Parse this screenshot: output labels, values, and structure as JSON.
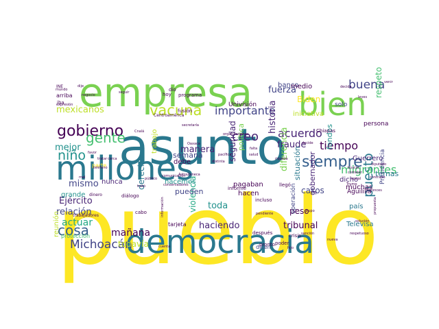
{
  "word_cloud": {
    "palette": [
      "#440154",
      "#482475",
      "#414487",
      "#355f8d",
      "#2a788e",
      "#21918c",
      "#22a884",
      "#44bf70",
      "#7ad151",
      "#bddf26",
      "#fde725"
    ],
    "words": [
      {
        "text": "pueblo",
        "weight": 100,
        "color": "#fde725"
      },
      {
        "text": "asunto",
        "weight": 78,
        "color": "#2a788e"
      },
      {
        "text": "empresa",
        "weight": 62,
        "color": "#7ad151"
      },
      {
        "text": "millones",
        "weight": 56,
        "color": "#2a788e"
      },
      {
        "text": "democracia",
        "weight": 50,
        "color": "#2a788e"
      },
      {
        "text": "bien",
        "weight": 44,
        "color": "#7ad151"
      },
      {
        "text": "siempre",
        "weight": 24,
        "color": "#355f8d"
      },
      {
        "text": "gobierno",
        "weight": 22,
        "color": "#440154"
      },
      {
        "text": "vacuna",
        "weight": 22,
        "color": "#bddf26"
      },
      {
        "text": "gente",
        "weight": 20,
        "color": "#44bf70"
      },
      {
        "text": "cosa",
        "weight": 20,
        "color": "#355f8d"
      },
      {
        "text": "niño",
        "weight": 18,
        "color": "#21918c"
      },
      {
        "text": "Michoacán",
        "weight": 18,
        "color": "#414487"
      },
      {
        "text": "buena",
        "weight": 18,
        "color": "#414487"
      },
      {
        "text": "puesto",
        "weight": 17,
        "color": "#2a788e"
      },
      {
        "text": "creo",
        "weight": 17,
        "color": "#482475"
      },
      {
        "text": "importante",
        "weight": 14,
        "color": "#414487"
      },
      {
        "text": "tiempo",
        "weight": 14,
        "color": "#440154"
      },
      {
        "text": "acuerdo",
        "weight": 14,
        "color": "#482475"
      },
      {
        "text": "migrantes",
        "weight": 14,
        "color": "#44bf70"
      },
      {
        "text": "mexicanos",
        "weight": 13,
        "color": "#bddf26"
      },
      {
        "text": "fuerza",
        "weight": 13,
        "color": "#414487"
      },
      {
        "text": "manera",
        "weight": 13,
        "color": "#482475"
      },
      {
        "text": "mismo",
        "weight": 13,
        "color": "#414487"
      },
      {
        "text": "mañana",
        "weight": 13,
        "color": "#440154"
      },
      {
        "text": "toda",
        "weight": 13,
        "color": "#21918c"
      },
      {
        "text": "actuar",
        "weight": 12,
        "color": "#22a884"
      },
      {
        "text": "Ejército",
        "weight": 12,
        "color": "#482475"
      },
      {
        "text": "relación",
        "weight": 12,
        "color": "#414487"
      },
      {
        "text": "haciendo",
        "weight": 12,
        "color": "#482475"
      },
      {
        "text": "tribunal",
        "weight": 12,
        "color": "#440154"
      },
      {
        "text": "historia",
        "weight": 12,
        "color": "#482475"
      },
      {
        "text": "diferencia",
        "weight": 12,
        "color": "#7ad151"
      },
      {
        "text": "mejor",
        "weight": 11,
        "color": "#21918c"
      },
      {
        "text": "fraude",
        "weight": 11,
        "color": "#482475"
      },
      {
        "text": "Biden",
        "weight": 11,
        "color": "#fde725"
      },
      {
        "text": "respeto",
        "weight": 11,
        "color": "#44bf70"
      },
      {
        "text": "casos",
        "weight": 11,
        "color": "#414487"
      },
      {
        "text": "peso",
        "weight": 11,
        "color": "#440154"
      },
      {
        "text": "seguridad",
        "weight": 11,
        "color": "#482475"
      },
      {
        "text": "derecho",
        "weight": 11,
        "color": "#2a788e"
      },
      {
        "text": "violencia",
        "weight": 11,
        "color": "#22a884"
      },
      {
        "text": "todavía",
        "weight": 11,
        "color": "#bddf26"
      },
      {
        "text": "pueden",
        "weight": 10,
        "color": "#414487"
      },
      {
        "text": "gobernador",
        "weight": 10,
        "color": "#482475"
      },
      {
        "text": "política",
        "weight": 10,
        "color": "#7ad151"
      },
      {
        "text": "situación",
        "weight": 10,
        "color": "#2a788e"
      },
      {
        "text": "fondos",
        "weight": 10,
        "color": "#21918c"
      },
      {
        "text": "Guerrero",
        "weight": 9,
        "color": "#482475"
      },
      {
        "text": "temas",
        "weight": 9,
        "color": "#2a788e"
      },
      {
        "text": "muchas",
        "weight": 9,
        "color": "#440154"
      },
      {
        "text": "dicho",
        "weight": 9,
        "color": "#482475"
      },
      {
        "text": "pagaban",
        "weight": 9,
        "color": "#440154"
      },
      {
        "text": "hacemos",
        "weight": 9,
        "color": "#21918c"
      },
      {
        "text": "hacen",
        "weight": 9,
        "color": "#440154"
      },
      {
        "text": "grande",
        "weight": 9,
        "color": "#21918c"
      },
      {
        "text": "nunca",
        "weight": 9,
        "color": "#482475"
      },
      {
        "text": "debe",
        "weight": 9,
        "color": "#440154"
      },
      {
        "text": "semana",
        "weight": 9,
        "color": "#414487"
      },
      {
        "text": "trabajo",
        "weight": 9,
        "color": "#bddf26"
      },
      {
        "text": "país",
        "weight": 9,
        "color": "#2a788e"
      },
      {
        "text": "Televisa",
        "weight": 9,
        "color": "#2a788e"
      },
      {
        "text": "operación",
        "weight": 8,
        "color": "#414487"
      },
      {
        "text": "Presidencia",
        "weight": 8,
        "color": "#414487"
      },
      {
        "text": "Águililla",
        "weight": 7,
        "color": "#440154"
      },
      {
        "text": "iniciativa",
        "weight": 8,
        "color": "#bddf26"
      },
      {
        "text": "banco",
        "weight": 8,
        "color": "#414487"
      },
      {
        "text": "medio",
        "weight": 8,
        "color": "#440154"
      },
      {
        "text": "solo",
        "weight": 8,
        "color": "#414487"
      },
      {
        "text": "persona",
        "weight": 7,
        "color": "#440154"
      },
      {
        "text": "reunión",
        "weight": 8,
        "color": "#bddf26"
      },
      {
        "text": "protección",
        "weight": 7,
        "color": "#44bf70"
      },
      {
        "text": "parte",
        "weight": 7,
        "color": "#fde725"
      },
      {
        "text": "diálogo",
        "weight": 6,
        "color": "#440154"
      },
      {
        "text": "dicen",
        "weight": 7,
        "color": "#414487"
      },
      {
        "text": "incluso",
        "weight": 6,
        "color": "#440154"
      },
      {
        "text": "informe",
        "weight": 6,
        "color": "#440154"
      },
      {
        "text": "después",
        "weight": 6,
        "color": "#440154"
      },
      {
        "text": "llegó",
        "weight": 6,
        "color": "#440154"
      },
      {
        "text": "crisis",
        "weight": 6,
        "color": "#440154"
      },
      {
        "text": "Chiapas",
        "weight": 6,
        "color": "#440154"
      },
      {
        "text": "tarjeta",
        "weight": 6,
        "color": "#440154"
      },
      {
        "text": "pronto",
        "weight": 5,
        "color": "#440154"
      },
      {
        "text": "poder",
        "weight": 5,
        "color": "#440154"
      },
      {
        "text": "Univisión",
        "weight": 7,
        "color": "#440154"
      },
      {
        "text": "programa",
        "weight": 5,
        "color": "#440154"
      },
      {
        "text": "fusión",
        "weight": 5,
        "color": "#440154"
      },
      {
        "text": "dio",
        "weight": 5,
        "color": "#440154"
      },
      {
        "text": "hoy",
        "weight": 5,
        "color": "#440154"
      },
      {
        "text": "Centroamérica",
        "weight": 5,
        "color": "#440154"
      },
      {
        "text": "arriba",
        "weight": 6,
        "color": "#440154"
      },
      {
        "text": "INE",
        "weight": 5,
        "color": "#440154"
      },
      {
        "text": "iba",
        "weight": 5,
        "color": "#440154"
      },
      {
        "text": "cabo",
        "weight": 5,
        "color": "#440154"
      },
      {
        "text": "dinero",
        "weight": 5,
        "color": "#440154"
      },
      {
        "text": "trabajadores",
        "weight": 5,
        "color": "#440154"
      },
      {
        "text": "público",
        "weight": 4,
        "color": "#440154"
      },
      {
        "text": "buscar",
        "weight": 4,
        "color": "#440154"
      },
      {
        "text": "social",
        "weight": 4,
        "color": "#440154"
      },
      {
        "text": "Trump",
        "weight": 4,
        "color": "#440154"
      },
      {
        "text": "cometer",
        "weight": 4,
        "color": "#440154"
      },
      {
        "text": "diputado",
        "weight": 4,
        "color": "#440154"
      },
      {
        "text": "grupo",
        "weight": 4,
        "color": "#440154"
      },
      {
        "text": "nueva",
        "weight": 4,
        "color": "#440154"
      },
      {
        "text": "respetuoso",
        "weight": 4,
        "color": "#440154"
      },
      {
        "text": "sanción",
        "weight": 4,
        "color": "#440154"
      },
      {
        "text": "cuenta",
        "weight": 4,
        "color": "#440154"
      },
      {
        "text": "trató",
        "weight": 4,
        "color": "#440154"
      },
      {
        "text": "negocio",
        "weight": 4,
        "color": "#440154"
      },
      {
        "text": "expresión",
        "weight": 4,
        "color": "#440154"
      },
      {
        "text": "mundo",
        "weight": 4,
        "color": "#440154"
      },
      {
        "text": "dije",
        "weight": 4,
        "color": "#440154"
      },
      {
        "text": "venir",
        "weight": 4,
        "color": "#440154"
      },
      {
        "text": "salud",
        "weight": 4,
        "color": "#440154"
      },
      {
        "text": "falta",
        "weight": 4,
        "color": "#440154"
      },
      {
        "text": "riqueza",
        "weight": 4,
        "color": "#440154"
      },
      {
        "text": "leyes",
        "weight": 4,
        "color": "#440154"
      },
      {
        "text": "decida",
        "weight": 4,
        "color": "#440154"
      },
      {
        "text": "comunicación",
        "weight": 4,
        "color": "#440154"
      },
      {
        "text": "conservadores",
        "weight": 4,
        "color": "#440154"
      },
      {
        "text": "secretaría",
        "weight": 4,
        "color": "#440154"
      },
      {
        "text": "Oaxaca",
        "weight": 4,
        "color": "#440154"
      },
      {
        "text": "pacífica",
        "weight": 4,
        "color": "#440154"
      },
      {
        "text": "pendiente",
        "weight": 4,
        "color": "#440154"
      },
      {
        "text": "decide",
        "weight": 4,
        "color": "#440154"
      },
      {
        "text": "hijo",
        "weight": 4,
        "color": "#440154"
      },
      {
        "text": "seguir",
        "weight": 4,
        "color": "#440154"
      },
      {
        "text": "tratar",
        "weight": 4,
        "color": "#440154"
      },
      {
        "text": "favor",
        "weight": 4,
        "color": "#440154"
      },
      {
        "text": "teléfono",
        "weight": 4,
        "color": "#440154"
      },
      {
        "text": "Cnalá",
        "weight": 4,
        "color": "#440154"
      },
      {
        "text": "mal",
        "weight": 4,
        "color": "#440154"
      },
      {
        "text": "cerca",
        "weight": 4,
        "color": "#440154"
      },
      {
        "text": "AstraZeneca",
        "weight": 4,
        "color": "#440154"
      },
      {
        "text": "organizaciones",
        "weight": 4,
        "color": "#440154"
      },
      {
        "text": "distinta",
        "weight": 4,
        "color": "#440154"
      },
      {
        "text": "información",
        "weight": 4,
        "color": "#440154"
      },
      {
        "text": "contrario",
        "weight": 4,
        "color": "#440154"
      },
      {
        "text": "entonces",
        "weight": 4,
        "color": "#440154"
      },
      {
        "text": "solución",
        "weight": 4,
        "color": "#440154"
      },
      {
        "text": "propuesta",
        "weight": 4,
        "color": "#440154"
      },
      {
        "text": "corrupción",
        "weight": 4,
        "color": "#440154"
      }
    ]
  }
}
